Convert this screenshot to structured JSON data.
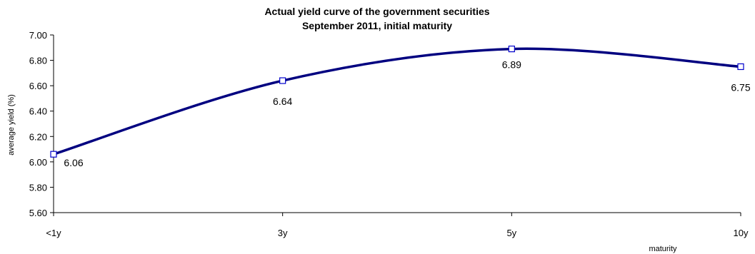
{
  "chart_data": {
    "type": "line",
    "title": "Actual yield curve of the government securities",
    "subtitle": "September 2011, initial maturity",
    "xlabel": "maturity",
    "ylabel": "average yield (%)",
    "categories": [
      "<1y",
      "3y",
      "5y",
      "10y"
    ],
    "series": [
      {
        "values": [
          6.06,
          6.64,
          6.89,
          6.75
        ],
        "labels": [
          "6.06",
          "6.64",
          "6.89",
          "6.75"
        ]
      }
    ],
    "ylim": [
      5.6,
      7.0
    ],
    "yticks": [
      "7.00",
      "6.80",
      "6.60",
      "6.40",
      "6.20",
      "6.00",
      "5.80",
      "5.60"
    ],
    "smoothed": true,
    "grid": false,
    "legend": "none",
    "line_color": "#000080",
    "marker": "hollow-square"
  }
}
